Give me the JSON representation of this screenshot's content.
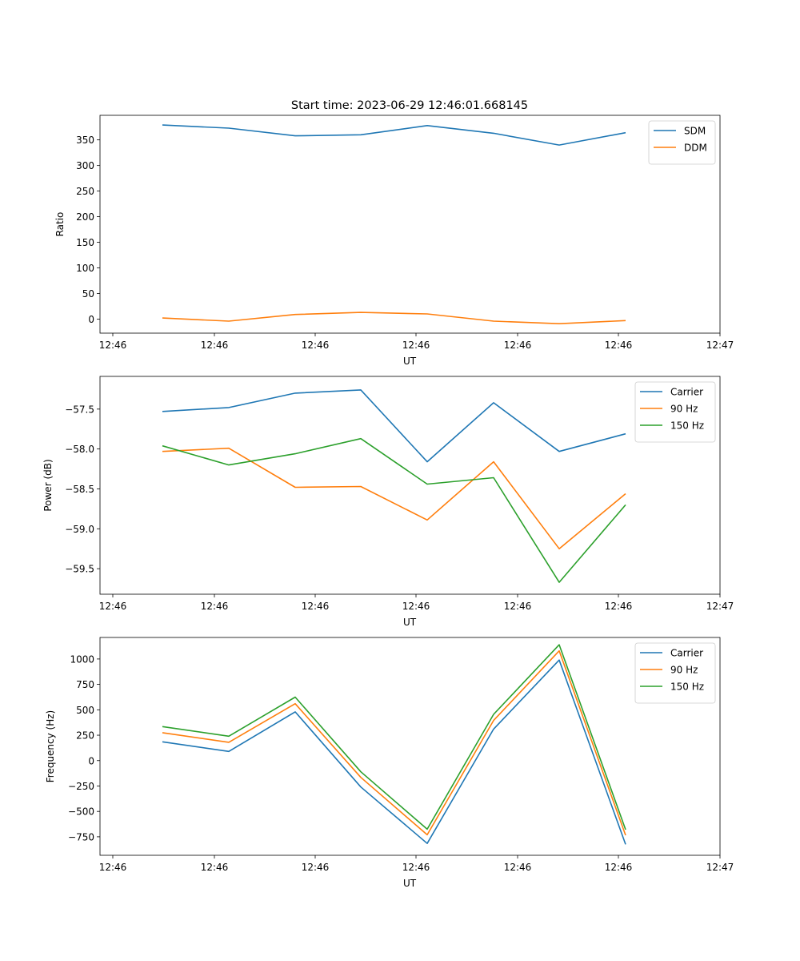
{
  "title": "Start time: 2023-06-29 12:46:01.668145",
  "colors": {
    "blue": "#1f77b4",
    "orange": "#ff7f0e",
    "green": "#2ca02c"
  },
  "chart_data": [
    {
      "type": "line",
      "xlabel": "UT",
      "ylabel": "Ratio",
      "x_tick_labels": [
        "12:46",
        "12:46",
        "12:46",
        "12:46",
        "12:46",
        "12:46",
        "12:46",
        "12:47"
      ],
      "y_ticks": [
        0,
        50,
        100,
        150,
        200,
        250,
        300,
        350
      ],
      "y_tick_labels": [
        "0",
        "50",
        "100",
        "150",
        "200",
        "250",
        "300",
        "350"
      ],
      "ylim": [
        -27.5,
        398
      ],
      "legend": "top-right",
      "grid": false,
      "series": [
        {
          "name": "SDM",
          "color": "#1f77b4",
          "values": [
            379,
            373,
            358,
            360,
            378,
            363,
            340,
            364
          ]
        },
        {
          "name": "DDM",
          "color": "#ff7f0e",
          "values": [
            2,
            -4,
            9,
            13,
            10,
            -4,
            -9,
            -3
          ]
        }
      ]
    },
    {
      "type": "line",
      "xlabel": "UT",
      "ylabel": "Power (dB)",
      "x_tick_labels": [
        "12:46",
        "12:46",
        "12:46",
        "12:46",
        "12:46",
        "12:46",
        "12:46",
        "12:47"
      ],
      "y_ticks": [
        -59.5,
        -59.0,
        -58.5,
        -58.0,
        -57.5
      ],
      "y_tick_labels": [
        "−59.5",
        "−59.0",
        "−58.5",
        "−58.0",
        "−57.5"
      ],
      "ylim": [
        -59.82,
        -57.09
      ],
      "legend": "top-right",
      "grid": false,
      "series": [
        {
          "name": "Carrier",
          "color": "#1f77b4",
          "values": [
            -57.53,
            -57.48,
            -57.3,
            -57.26,
            -58.16,
            -57.42,
            -58.03,
            -57.81
          ]
        },
        {
          "name": "90 Hz",
          "color": "#ff7f0e",
          "values": [
            -58.03,
            -57.99,
            -58.48,
            -58.47,
            -58.89,
            -58.16,
            -59.25,
            -58.56
          ]
        },
        {
          "name": "150 Hz",
          "color": "#2ca02c",
          "values": [
            -57.96,
            -58.2,
            -58.06,
            -57.87,
            -58.44,
            -58.36,
            -59.67,
            -58.7
          ]
        }
      ]
    },
    {
      "type": "line",
      "xlabel": "UT",
      "ylabel": "Frequency (Hz)",
      "x_tick_labels": [
        "12:46",
        "12:46",
        "12:46",
        "12:46",
        "12:46",
        "12:46",
        "12:46",
        "12:47"
      ],
      "y_ticks": [
        -750,
        -500,
        -250,
        0,
        250,
        500,
        750,
        1000
      ],
      "y_tick_labels": [
        "−750",
        "−500",
        "−250",
        "0",
        "250",
        "500",
        "750",
        "1000"
      ],
      "ylim": [
        -932,
        1212
      ],
      "legend": "top-right",
      "grid": false,
      "series": [
        {
          "name": "Carrier",
          "color": "#1f77b4",
          "values": [
            185,
            90,
            480,
            -260,
            -815,
            310,
            990,
            -825
          ]
        },
        {
          "name": "90 Hz",
          "color": "#ff7f0e",
          "values": [
            275,
            180,
            560,
            -165,
            -730,
            395,
            1080,
            -735
          ]
        },
        {
          "name": "150 Hz",
          "color": "#2ca02c",
          "values": [
            335,
            240,
            625,
            -110,
            -675,
            455,
            1140,
            -680
          ]
        }
      ]
    }
  ]
}
